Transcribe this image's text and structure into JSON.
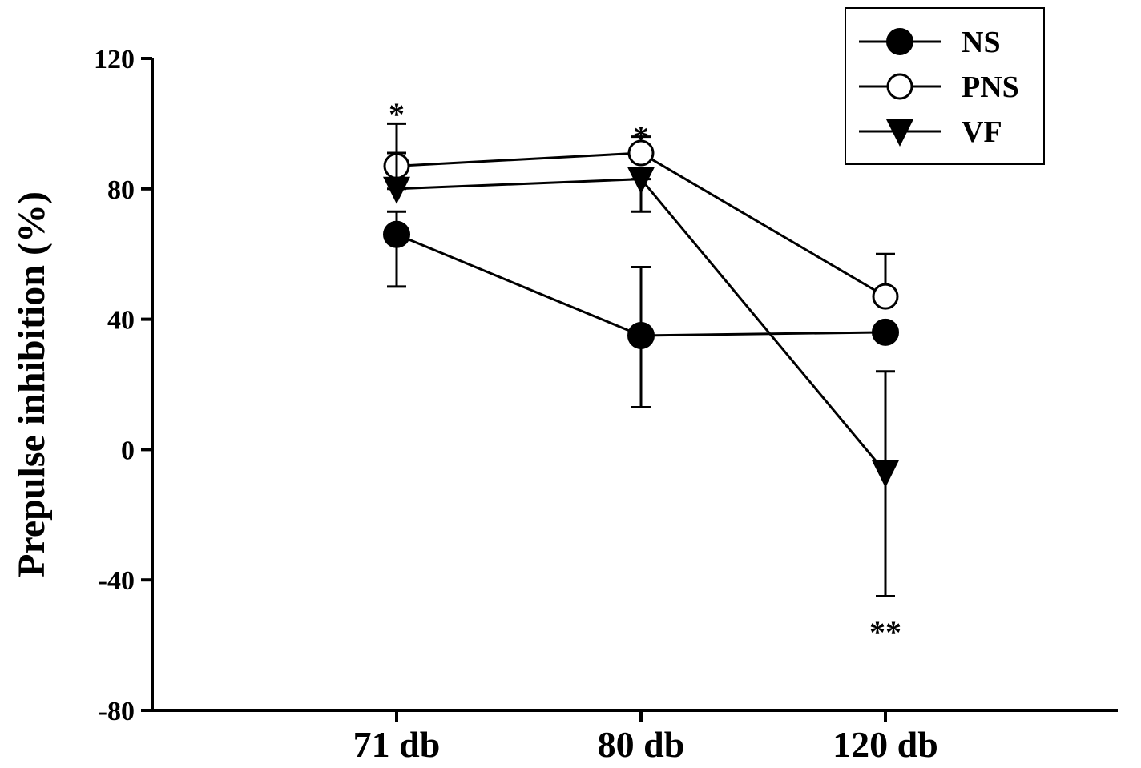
{
  "chart_data": {
    "type": "line",
    "title": "",
    "xlabel": "",
    "ylabel": "Prepulse inhibition (%)",
    "categories": [
      "71 db",
      "80 db",
      "120 db"
    ],
    "ylim": [
      -80,
      120
    ],
    "yticks": [
      -80,
      -40,
      0,
      40,
      80,
      120
    ],
    "grid": false,
    "legend_position": "top-right",
    "series": [
      {
        "name": "NS",
        "marker": "filled-circle",
        "values": [
          66,
          35,
          36
        ],
        "err_low": [
          50,
          13,
          31
        ],
        "err_high": [
          73,
          56,
          31
        ]
      },
      {
        "name": "PNS",
        "marker": "open-circle",
        "values": [
          87,
          91,
          47
        ],
        "err_low": [
          87,
          91,
          47
        ],
        "err_high": [
          91,
          96,
          60
        ]
      },
      {
        "name": "VF",
        "marker": "filled-triangle-down",
        "values": [
          80,
          83,
          -7
        ],
        "err_low": [
          80,
          73,
          -45
        ],
        "err_high": [
          100,
          83,
          24
        ]
      }
    ],
    "annotations": [
      {
        "text": "*",
        "category": "71 db",
        "y": 106
      },
      {
        "text": "*",
        "category": "80 db",
        "y": 99
      },
      {
        "text": "**",
        "category": "120 db",
        "y": -53
      }
    ]
  }
}
